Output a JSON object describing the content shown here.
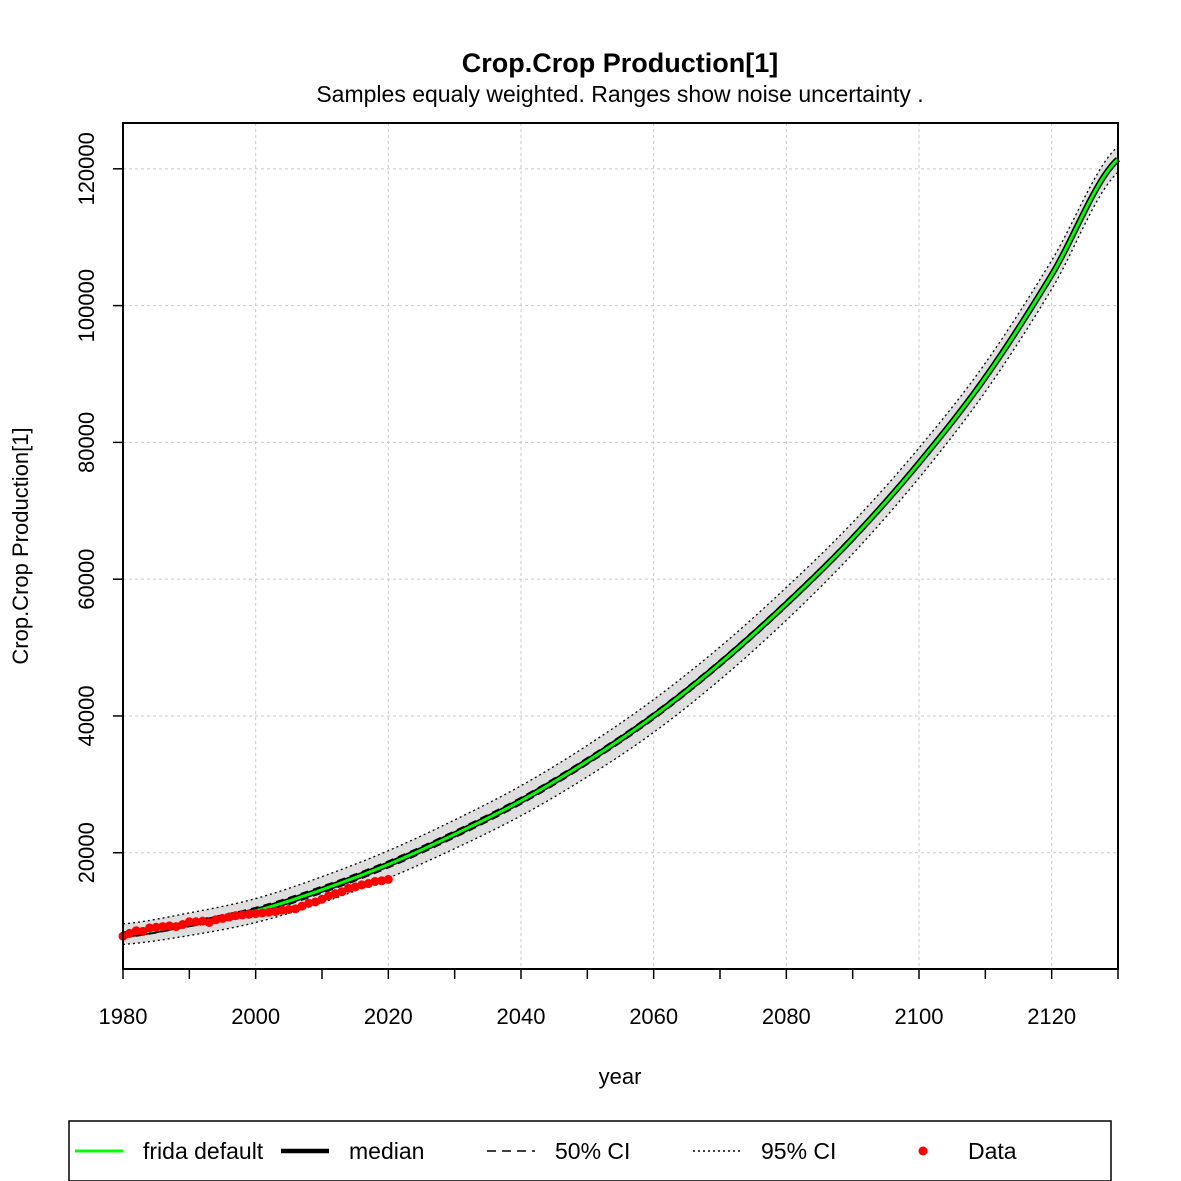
{
  "chart_data": {
    "type": "line",
    "title": "Crop.Crop Production[1]",
    "subtitle": "Samples equaly weighted. Ranges show  noise uncertainty .",
    "xlabel": "year",
    "ylabel": "Crop.Crop Production[1]",
    "xlim": [
      1980,
      2130
    ],
    "ylim": [
      3000,
      126700
    ],
    "xticks": [
      1980,
      2000,
      2020,
      2040,
      2060,
      2080,
      2100,
      2120
    ],
    "yticks": [
      20000,
      40000,
      60000,
      80000,
      100000,
      120000
    ],
    "grid": true,
    "legend": {
      "placement": "bottom",
      "entries": [
        "frida default",
        "median",
        "50% CI",
        "95% CI",
        "Data"
      ]
    },
    "colors": {
      "frida_default": "#00ff00",
      "median": "#000000",
      "data": "#ff0000",
      "ci_band": "#d3d3d3",
      "grid": "#c8c8c8"
    },
    "series": [
      {
        "name": "frida default",
        "x": [
          1980,
          1990,
          2000,
          2010,
          2020,
          2030,
          2040,
          2050,
          2060,
          2070,
          2080,
          2090,
          2100,
          2110,
          2120,
          2130
        ],
        "values": [
          8000,
          9600,
          11500,
          14600,
          18300,
          22700,
          27600,
          33400,
          40000,
          47700,
          56400,
          66000,
          77000,
          89500,
          104500,
          121400
        ]
      },
      {
        "name": "median",
        "x": [
          1980,
          1990,
          2000,
          2010,
          2020,
          2030,
          2040,
          2050,
          2060,
          2070,
          2080,
          2090,
          2100,
          2110,
          2120,
          2130
        ],
        "values": [
          8000,
          9600,
          11500,
          14600,
          18300,
          22700,
          27600,
          33400,
          40000,
          47700,
          56400,
          66000,
          77000,
          89500,
          104500,
          121400
        ]
      },
      {
        "name": "50% CI",
        "x": [
          1980,
          1990,
          2000,
          2010,
          2020,
          2030,
          2040,
          2050,
          2060,
          2070,
          2080,
          2090,
          2100,
          2110,
          2120,
          2130
        ],
        "upper": [
          8400,
          10000,
          12000,
          15100,
          18800,
          23200,
          28100,
          33900,
          40500,
          48200,
          56900,
          66500,
          77500,
          90000,
          105000,
          121900
        ],
        "lower": [
          7600,
          9200,
          11000,
          14100,
          17800,
          22200,
          27100,
          32900,
          39500,
          47200,
          55900,
          65500,
          76500,
          89000,
          104000,
          120900
        ]
      },
      {
        "name": "95% CI",
        "x": [
          1980,
          1990,
          2000,
          2010,
          2020,
          2030,
          2040,
          2050,
          2060,
          2070,
          2080,
          2090,
          2100,
          2110,
          2120,
          2130
        ],
        "upper": [
          9600,
          11200,
          13300,
          16500,
          20300,
          24800,
          29800,
          35700,
          42400,
          50100,
          58800,
          68300,
          79200,
          91600,
          106600,
          123300
        ],
        "lower": [
          6600,
          7900,
          9800,
          12700,
          16300,
          20600,
          25400,
          31100,
          37600,
          45300,
          54000,
          63700,
          74800,
          87400,
          102400,
          119500
        ]
      },
      {
        "name": "Data",
        "x": [
          1980,
          1981,
          1982,
          1983,
          1984,
          1985,
          1986,
          1987,
          1988,
          1989,
          1990,
          1991,
          1992,
          1993,
          1994,
          1995,
          1996,
          1997,
          1998,
          1999,
          2000,
          2001,
          2002,
          2003,
          2004,
          2005,
          2006,
          2007,
          2008,
          2009,
          2010,
          2011,
          2012,
          2013,
          2014,
          2015,
          2016,
          2017,
          2018,
          2019,
          2020
        ],
        "values": [
          7800,
          8200,
          8600,
          8500,
          9000,
          9100,
          9200,
          9300,
          9200,
          9500,
          9900,
          9900,
          10000,
          9800,
          10200,
          10400,
          10600,
          10800,
          10900,
          11000,
          11100,
          11200,
          11300,
          11400,
          11600,
          11700,
          11800,
          12200,
          12600,
          12800,
          13200,
          13700,
          14000,
          14300,
          14800,
          15000,
          15300,
          15500,
          15800,
          15900,
          16100
        ]
      }
    ]
  }
}
